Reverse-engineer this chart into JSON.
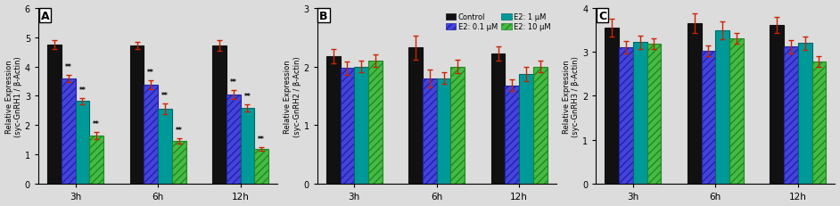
{
  "panels": [
    {
      "label": "A",
      "ylabel": "Relative Expression\n(syc-GnRH1 / β-Actin)",
      "ylim": [
        0.0,
        6.0
      ],
      "yticks": [
        0.0,
        1.0,
        2.0,
        3.0,
        4.0,
        5.0,
        6.0
      ],
      "groups": [
        "3h",
        "6h",
        "12h"
      ],
      "values": [
        [
          4.75,
          3.58,
          2.82,
          1.65
        ],
        [
          4.72,
          3.37,
          2.55,
          1.47
        ],
        [
          4.7,
          3.05,
          2.6,
          1.2
        ]
      ],
      "errors": [
        [
          0.15,
          0.12,
          0.1,
          0.12
        ],
        [
          0.12,
          0.15,
          0.18,
          0.08
        ],
        [
          0.18,
          0.15,
          0.12,
          0.06
        ]
      ],
      "sig": [
        [
          false,
          true,
          true,
          true
        ],
        [
          false,
          true,
          true,
          true
        ],
        [
          false,
          true,
          true,
          true
        ]
      ]
    },
    {
      "label": "B",
      "ylabel": "Relative Expression\n(syc-GnRH2 / β-Actin)",
      "ylim": [
        0.0,
        3.0
      ],
      "yticks": [
        0.0,
        1.0,
        2.0,
        3.0
      ],
      "groups": [
        "3h",
        "6h",
        "12h"
      ],
      "values": [
        [
          2.18,
          1.97,
          2.0,
          2.1
        ],
        [
          2.32,
          1.8,
          1.8,
          2.0
        ],
        [
          2.22,
          1.68,
          1.87,
          2.0
        ]
      ],
      "errors": [
        [
          0.12,
          0.12,
          0.1,
          0.1
        ],
        [
          0.2,
          0.15,
          0.1,
          0.12
        ],
        [
          0.12,
          0.1,
          0.12,
          0.1
        ]
      ],
      "sig": [
        [
          false,
          false,
          false,
          false
        ],
        [
          false,
          false,
          false,
          false
        ],
        [
          false,
          false,
          false,
          false
        ]
      ]
    },
    {
      "label": "C",
      "ylabel": "Relative Expression\n(syc-GnRH3 / β-Actin)",
      "ylim": [
        0.0,
        4.0
      ],
      "yticks": [
        0.0,
        1.0,
        2.0,
        3.0,
        4.0
      ],
      "groups": [
        "3h",
        "6h",
        "12h"
      ],
      "values": [
        [
          3.55,
          3.1,
          3.22,
          3.18
        ],
        [
          3.65,
          3.02,
          3.48,
          3.3
        ],
        [
          3.6,
          3.12,
          3.2,
          2.78
        ]
      ],
      "errors": [
        [
          0.2,
          0.15,
          0.15,
          0.12
        ],
        [
          0.22,
          0.12,
          0.2,
          0.12
        ],
        [
          0.18,
          0.15,
          0.15,
          0.12
        ]
      ],
      "sig": [
        [
          false,
          false,
          false,
          false
        ],
        [
          false,
          false,
          false,
          false
        ],
        [
          false,
          false,
          false,
          false
        ]
      ]
    }
  ],
  "bar_styles": [
    {
      "facecolor": "#111111",
      "edgecolor": "#111111",
      "hatch": "",
      "linewidth": 0.8
    },
    {
      "facecolor": "#4444dd",
      "edgecolor": "#2222aa",
      "hatch": "////",
      "linewidth": 0.8
    },
    {
      "facecolor": "#009999",
      "edgecolor": "#006666",
      "hatch": "",
      "linewidth": 0.8
    },
    {
      "facecolor": "#44bb44",
      "edgecolor": "#228822",
      "hatch": "////",
      "linewidth": 0.8
    }
  ],
  "legend_labels": [
    "Control",
    "E2: 0.1 μM",
    "E2: 1 μM",
    "E2: 10 μM"
  ],
  "error_cap_color": "#cc2200",
  "sig_text": "**",
  "sig_fontsize": 5.5,
  "bar_width": 0.17,
  "figsize": [
    9.42,
    2.32
  ],
  "dpi": 100,
  "background_color": "#dcdcdc"
}
